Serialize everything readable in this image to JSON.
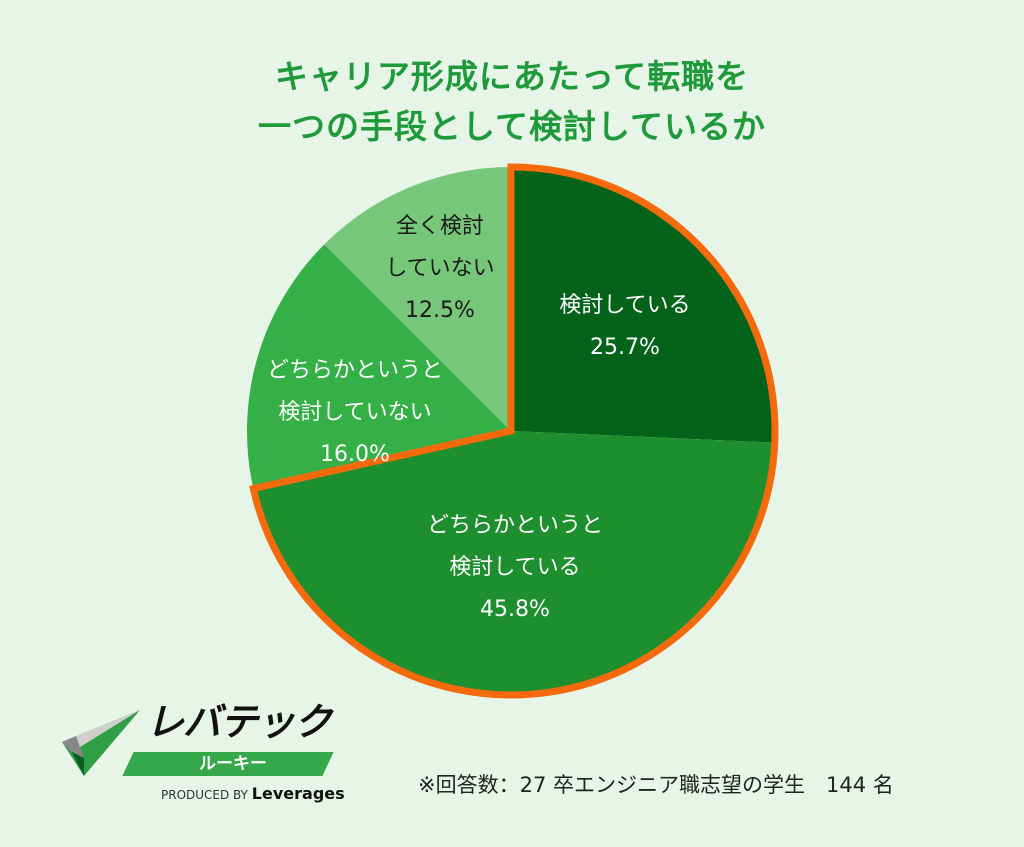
{
  "chart_data": {
    "type": "pie",
    "title_lines": [
      "キャリア形成にあたって転職を",
      "一つの手段として検討しているか"
    ],
    "slices": [
      {
        "label_lines": [
          "検討している"
        ],
        "value": 25.7,
        "value_label": "25.7%",
        "color": "#04631a",
        "highlighted": true
      },
      {
        "label_lines": [
          "どちらかというと",
          "検討している"
        ],
        "value": 45.8,
        "value_label": "45.8%",
        "color": "#1e8f2e",
        "highlighted": true
      },
      {
        "label_lines": [
          "どちらかというと",
          "検討していない"
        ],
        "value": 16.0,
        "value_label": "16.0%",
        "color": "#35b046",
        "highlighted": false
      },
      {
        "label_lines": [
          "全く検討",
          "していない"
        ],
        "value": 12.5,
        "value_label": "12.5%",
        "color": "#77c77a",
        "highlighted": false
      }
    ],
    "start": "top",
    "direction": "clockwise",
    "highlight_color": "#f56a0c"
  },
  "footnote": "※回答数：27 卒エンジニア職志望の学生　144 名",
  "logo": {
    "name": "レバテック",
    "sub": "ルーキー",
    "produced_by": "PRODUCED BY",
    "brand": "Leverages"
  }
}
